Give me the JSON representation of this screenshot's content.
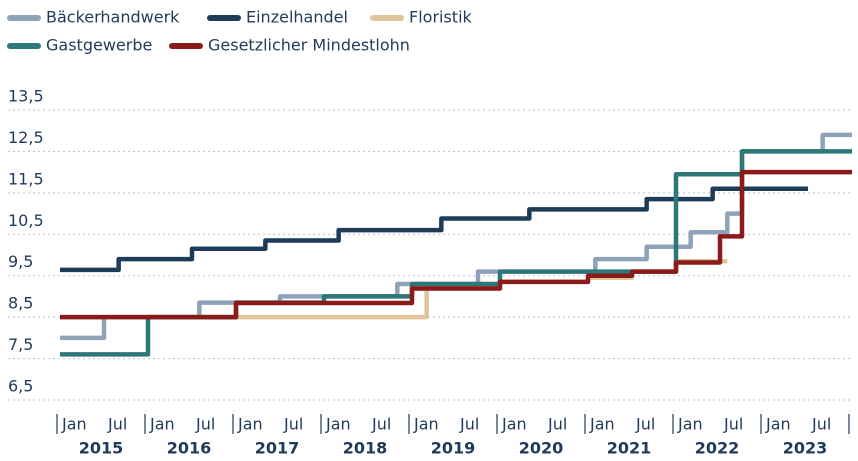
{
  "chart_data": {
    "type": "step",
    "series": [
      {
        "name": "Bäckerhandwerk",
        "color": "#8fa3b8",
        "x": [
          "2015-01",
          "2015-07",
          "2016-08",
          "2017-07",
          "2018-11",
          "2019-10",
          "2021-02",
          "2021-09",
          "2022-03",
          "2022-08",
          "2022-10",
          "2023-09",
          "2023-12"
        ],
        "values": [
          8.0,
          8.5,
          8.85,
          9.0,
          9.3,
          9.6,
          9.9,
          10.2,
          10.55,
          11.0,
          12.5,
          12.9,
          12.9
        ]
      },
      {
        "name": "Einzelhandel",
        "color": "#1f3b5a",
        "x": [
          "2015-01",
          "2015-09",
          "2016-07",
          "2017-05",
          "2018-03",
          "2019-05",
          "2020-05",
          "2021-09",
          "2022-06",
          "2023-06"
        ],
        "values": [
          9.64,
          9.9,
          10.15,
          10.35,
          10.6,
          10.88,
          11.1,
          11.35,
          11.6,
          11.6
        ]
      },
      {
        "name": "Floristik",
        "color": "#e0c49a",
        "x": [
          "2015-01",
          "2019-03",
          "2020-01",
          "2021-01",
          "2021-07",
          "2022-01",
          "2022-07"
        ],
        "values": [
          8.5,
          9.2,
          9.35,
          9.45,
          9.6,
          9.85,
          9.85
        ]
      },
      {
        "name": "Gastgewerbe",
        "color": "#2e7777",
        "x": [
          "2015-01",
          "2016-01",
          "2017-01",
          "2018-01",
          "2019-01",
          "2020-01",
          "2022-01",
          "2022-10",
          "2023-12"
        ],
        "values": [
          7.6,
          8.5,
          8.85,
          9.0,
          9.3,
          9.6,
          11.95,
          12.5,
          12.5
        ]
      },
      {
        "name": "Gesetzlicher Mindestlohn",
        "color": "#8b1a1a",
        "x": [
          "2015-01",
          "2017-01",
          "2019-01",
          "2020-01",
          "2021-01",
          "2021-07",
          "2022-01",
          "2022-07",
          "2022-10",
          "2023-12"
        ],
        "values": [
          8.5,
          8.84,
          9.19,
          9.35,
          9.5,
          9.6,
          9.82,
          10.45,
          12.0,
          12.0
        ]
      }
    ],
    "months": [
      "Jan",
      "Jul"
    ],
    "years": [
      "2015",
      "2016",
      "2017",
      "2018",
      "2019",
      "2020",
      "2021",
      "2022",
      "2023"
    ],
    "ylim": [
      6.5,
      13.5
    ],
    "yticks": [
      {
        "value": 6.5,
        "label": "6,5"
      },
      {
        "value": 7.5,
        "label": "7,5"
      },
      {
        "value": 8.5,
        "label": "8,5"
      },
      {
        "value": 9.5,
        "label": "9,5"
      },
      {
        "value": 10.5,
        "label": "10,5"
      },
      {
        "value": 11.5,
        "label": "11,5"
      },
      {
        "value": 12.5,
        "label": "12,5"
      },
      {
        "value": 13.5,
        "label": "13,5"
      }
    ],
    "grid": true
  }
}
